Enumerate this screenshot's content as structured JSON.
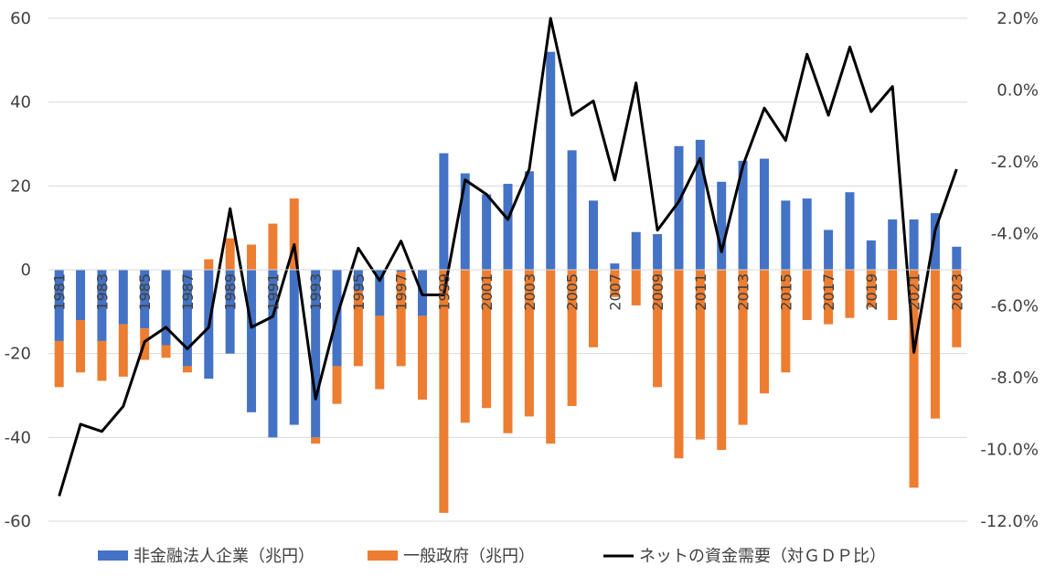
{
  "chart_data": {
    "type": "bar",
    "bar_mode": "stacked-diverging",
    "x": [
      1981,
      1982,
      1983,
      1984,
      1985,
      1986,
      1987,
      1988,
      1989,
      1990,
      1991,
      1992,
      1993,
      1994,
      1995,
      1996,
      1997,
      1998,
      1999,
      2000,
      2001,
      2002,
      2003,
      2004,
      2005,
      2006,
      2007,
      2008,
      2009,
      2010,
      2011,
      2012,
      2013,
      2014,
      2015,
      2016,
      2017,
      2018,
      2019,
      2020,
      2021,
      2022,
      2023
    ],
    "x_tick_labels": [
      "1981",
      "1983",
      "1985",
      "1987",
      "1989",
      "1991",
      "1993",
      "1995",
      "1997",
      "1999",
      "2001",
      "2003",
      "2005",
      "2007",
      "2009",
      "2011",
      "2013",
      "2015",
      "2017",
      "2019",
      "2021",
      "2023"
    ],
    "x_tick_years": [
      1981,
      1983,
      1985,
      1987,
      1989,
      1991,
      1993,
      1995,
      1997,
      1999,
      2001,
      2003,
      2005,
      2007,
      2009,
      2011,
      2013,
      2015,
      2017,
      2019,
      2021,
      2023
    ],
    "series": [
      {
        "name": "非金融法人企業（兆円）",
        "axis": "left",
        "kind": "bar",
        "color": "#4472C4",
        "values": [
          -17,
          -12,
          -17,
          -13,
          -14,
          -18,
          -23,
          -26,
          -20,
          -34,
          -40,
          -37,
          -40,
          -23,
          -5,
          -11,
          -0.5,
          -11,
          27.8,
          23,
          18,
          20.5,
          23.5,
          52,
          28.5,
          16.5,
          1.5,
          9,
          8.5,
          29.5,
          31,
          21,
          26,
          26.5,
          16.5,
          17,
          9.5,
          18.5,
          7,
          12,
          12,
          13.5,
          5.5
        ]
      },
      {
        "name": "一般政府（兆円）",
        "axis": "left",
        "kind": "bar",
        "color": "#ED7D31",
        "values": [
          -11,
          -12.5,
          -9.5,
          -12.5,
          -7.5,
          -3,
          -1.5,
          2.5,
          7.5,
          6,
          11,
          17,
          -1.5,
          -9,
          -18,
          -17.5,
          -22.5,
          -20,
          -58,
          -36.5,
          -33,
          -39,
          -35,
          -41.5,
          -32.5,
          -18.5,
          -6.5,
          -8.5,
          -28,
          -45,
          -40.5,
          -43,
          -37,
          -29.5,
          -24.5,
          -12,
          -13,
          -11.5,
          -9,
          -12,
          -52,
          -35.5,
          -18.5
        ]
      },
      {
        "name": "ネットの資金需要（対ＧＤＰ比）",
        "axis": "right",
        "kind": "line",
        "color": "#000000",
        "values": [
          -11.3,
          -9.3,
          -9.5,
          -8.8,
          -7.0,
          -6.6,
          -7.2,
          -6.6,
          -3.3,
          -6.6,
          -6.3,
          -4.3,
          -8.6,
          -6.3,
          -4.4,
          -5.3,
          -4.2,
          -5.7,
          -5.7,
          -2.5,
          -2.9,
          -3.6,
          -2.2,
          2.0,
          -0.7,
          -0.3,
          -2.5,
          0.2,
          -3.9,
          -3.1,
          -1.9,
          -4.5,
          -2.1,
          -0.5,
          -1.4,
          1.0,
          -0.7,
          1.2,
          -0.6,
          0.1,
          -7.3,
          -3.9,
          -2.2
        ]
      }
    ],
    "y_left": {
      "ylim": [
        -60,
        60
      ],
      "ticks": [
        60,
        40,
        20,
        0,
        -20,
        -40,
        -60
      ],
      "tick_labels": [
        "60",
        "40",
        "20",
        "0",
        "-20",
        "-40",
        "-60"
      ]
    },
    "y_right": {
      "ylim": [
        -12,
        2
      ],
      "ticks": [
        2,
        0,
        -2,
        -4,
        -6,
        -8,
        -10,
        -12
      ],
      "tick_labels": [
        "2.0%",
        "0.0%",
        "-2.0%",
        "-4.0%",
        "-6.0%",
        "-8.0%",
        "-10.0%",
        "-12.0%"
      ]
    },
    "grid": "horizontal",
    "legend_position": "bottom",
    "grid_color": "#D9D9D9",
    "text_color": "#404040"
  }
}
